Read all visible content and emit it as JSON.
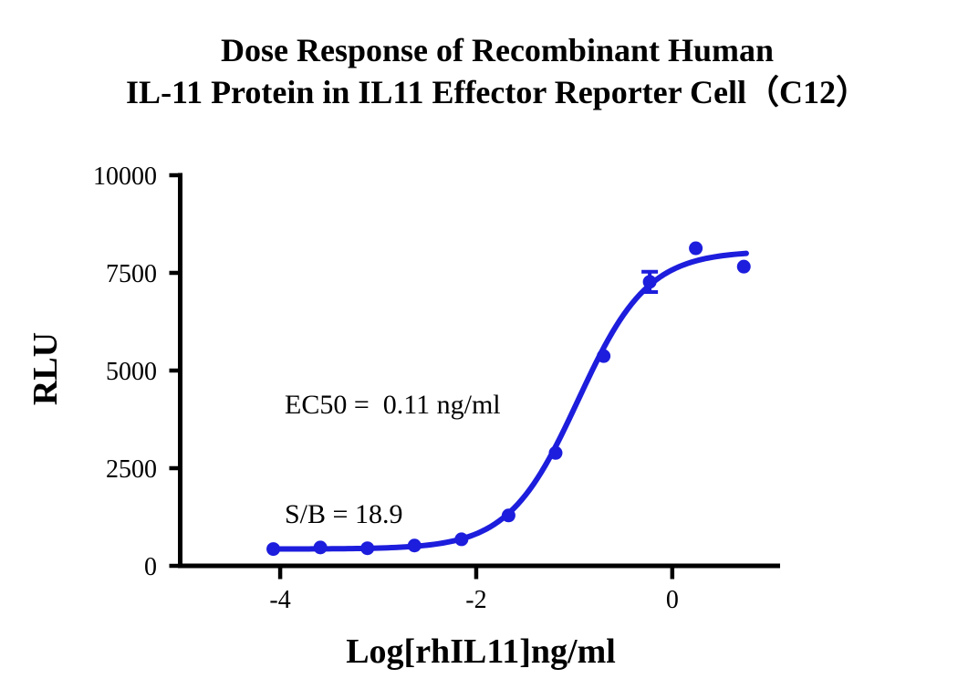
{
  "page": {
    "background": "#ffffff",
    "text_color": "#000000"
  },
  "chart_data": {
    "type": "scatter",
    "title": "Dose Response of Recombinant Human IL-11 Protein in IL11 Effector Reporter Cell（C12）",
    "title_lines": [
      "Dose Response of Recombinant Human",
      "IL-11 Protein in IL11 Effector Reporter Cell（C12）"
    ],
    "xlabel": "Log[rhIL11]ng/ml",
    "ylabel": "RLU",
    "xlim": [
      -5.02,
      1.1
    ],
    "ylim": [
      0,
      10000
    ],
    "x_ticks": [
      -4,
      -2,
      0
    ],
    "y_ticks": [
      0,
      2500,
      5000,
      7500,
      10000
    ],
    "grid": false,
    "legend": "none",
    "accent_color": "#1d1ddd",
    "axis_color": "#000000",
    "series": [
      {
        "name": "rhIL11",
        "color": "#1d1ddd",
        "marker": "circle",
        "x": [
          -4.07,
          -3.59,
          -3.11,
          -2.63,
          -2.15,
          -1.67,
          -1.19,
          -0.7,
          -0.23,
          0.24,
          0.73
        ],
        "y": [
          430,
          470,
          450,
          520,
          680,
          1290,
          2890,
          5370,
          7270,
          8130,
          7660
        ],
        "y_err": [
          0,
          0,
          0,
          0,
          0,
          0,
          0,
          0,
          260,
          0,
          0
        ]
      }
    ],
    "fit_curve": {
      "model": "4PL",
      "bottom": 430,
      "top": 8060,
      "log_ec50": -0.96,
      "hill_slope": 1.22,
      "x_start": -4.07,
      "x_end": 0.755
    },
    "annotations": [
      "EC50 =  0.11 ng/ml",
      "S/B = 18.9"
    ],
    "ec50_ng_ml": 0.11,
    "signal_to_background": 18.9
  }
}
